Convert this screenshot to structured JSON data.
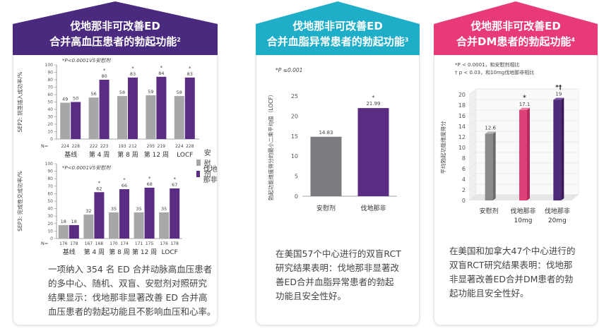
{
  "colors": {
    "grey_bar": "#a7a7a9",
    "purple_bar": "#5b2d82",
    "panel1_banner": "#4a2a7f",
    "panel2_banner": "#1eaec8",
    "panel3_banner": "#e83a78",
    "magenta_bar": "#e0407a",
    "dark_purple_bar": "#4e2a78"
  },
  "panel1": {
    "title_line1": "伐地那非可改善ED",
    "title_line2": "合并高血压患者的勃起功能",
    "title_sup": "2",
    "legend": [
      "安慰剂",
      "伐地那非"
    ],
    "caption": [
      "一项纳入 354 名 ED 合并动脉高血压患者",
      "的多中心、随机、双盲、安慰剂对照研究",
      "结果显示：伐地那非显著改善 ED 合并高",
      "血压患者的勃起功能且不影响血压和心率。"
    ]
  },
  "panel2": {
    "title_line1": "伐地那非可改善ED",
    "title_line2": "合并血脂异常患者的勃起功能",
    "title_sup": "3",
    "caption": [
      "在美国57个中心进行的双盲RCT",
      "研究结果表明：伐地那非显著改",
      "善ED合并血脂异常患者的勃起",
      "功能且安全性好。"
    ]
  },
  "panel3": {
    "title_line1": "伐地那非可改善ED",
    "title_line2": "合并DM患者的勃起功能",
    "title_sup": "4",
    "caption": [
      "在美国和加拿大47个中心进行的",
      "双盲RCT研究结果表明：伐地那",
      "非显著改善ED合并DM患者的勃",
      "起功能且安全性好。"
    ]
  },
  "chart_data": [
    {
      "type": "bar",
      "annotation": "*P<0.0001VS安慰剂",
      "ylabel": "SEP2: 阴茎插入成功率/%",
      "ylim": [
        0,
        100
      ],
      "yticks": [
        0,
        10,
        20,
        30,
        40,
        50,
        60,
        70,
        80,
        90,
        100
      ],
      "n_label": "N=",
      "categories": [
        "基线",
        "第 4 周",
        "第 8 周",
        "第 12 周",
        "LOCF"
      ],
      "n_values": [
        [
          "224",
          "228"
        ],
        [
          "222",
          "223"
        ],
        [
          "193",
          "212"
        ],
        [
          "205",
          "219"
        ],
        [
          "224",
          "228"
        ]
      ],
      "series": [
        {
          "name": "安慰剂",
          "values": [
            49,
            56,
            58,
            59,
            58
          ]
        },
        {
          "name": "伐地那非",
          "values": [
            50,
            80,
            83,
            84,
            83
          ]
        }
      ],
      "significance": [
        "",
        "*",
        "*",
        "*",
        "*"
      ]
    },
    {
      "type": "bar",
      "annotation": "*P<0.0001VS安慰剂",
      "ylabel": "SEP3: 完成性交成功率/%",
      "ylim": [
        0,
        100
      ],
      "yticks": [
        0,
        10,
        20,
        30,
        40,
        50,
        60,
        70,
        80,
        90,
        100
      ],
      "n_label": "N=",
      "categories": [
        "基线",
        "第 4 周",
        "第 8 周",
        "第 12 周",
        "LOCF"
      ],
      "n_values": [
        [
          "176",
          "178"
        ],
        [
          "167",
          "168"
        ],
        [
          "170",
          "174"
        ],
        [
          "171",
          "175"
        ],
        [
          "176",
          "178"
        ]
      ],
      "series": [
        {
          "name": "安慰剂",
          "values": [
            18,
            32,
            35,
            35,
            35
          ]
        },
        {
          "name": "伐地那非",
          "values": [
            18,
            62,
            66,
            68,
            67
          ]
        }
      ],
      "significance": [
        "",
        "*",
        "*",
        "*",
        "*"
      ]
    },
    {
      "type": "bar",
      "annotation": "*P ≤0.001",
      "ylabel": "勃起功能维度得分的最小二乘平均值（LOCF）",
      "ylim": [
        0,
        25
      ],
      "yticks": [
        0,
        5,
        10,
        15,
        20,
        25
      ],
      "categories": [
        "安慰剂",
        "伐地那非"
      ],
      "values": [
        14.83,
        21.99
      ],
      "value_labels": [
        "14.83",
        "21.99"
      ],
      "significance": [
        "",
        "*"
      ]
    },
    {
      "type": "bar",
      "annotation_lines": [
        "*P < 0.0001，和安慰剂相比",
        "† p < 0.03，和10mg伐地那非相比"
      ],
      "ylabel": "平均勃起功能维度得分",
      "ylim": [
        0,
        20
      ],
      "yticks": [
        0,
        2,
        4,
        6,
        8,
        10,
        12,
        14,
        16,
        18,
        20
      ],
      "categories": [
        "安慰剂",
        "伐地那非 10mg",
        "伐地那非 20mg"
      ],
      "category_lines": [
        [
          "安慰剂"
        ],
        [
          "伐地那非",
          "10mg"
        ],
        [
          "伐地那非",
          "20mg"
        ]
      ],
      "values": [
        12.6,
        17.1,
        19
      ],
      "value_labels": [
        "12.6",
        "17.1",
        "19"
      ],
      "significance": [
        "",
        "*",
        "*†"
      ]
    }
  ]
}
